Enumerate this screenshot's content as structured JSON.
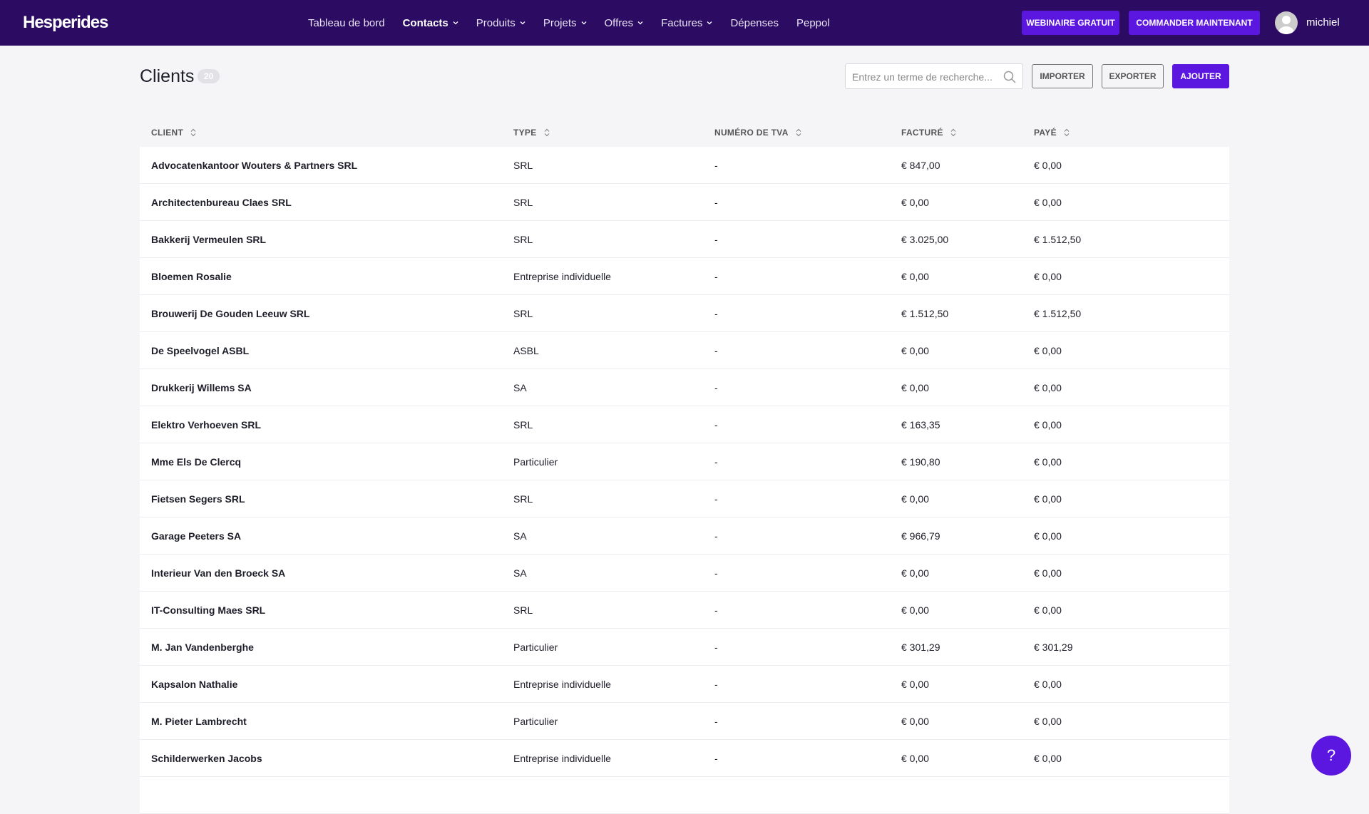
{
  "header": {
    "logo": "Hesperides",
    "nav": [
      {
        "label": "Tableau de bord",
        "dropdown": false,
        "active": false
      },
      {
        "label": "Contacts",
        "dropdown": true,
        "active": true
      },
      {
        "label": "Produits",
        "dropdown": true,
        "active": false
      },
      {
        "label": "Projets",
        "dropdown": true,
        "active": false
      },
      {
        "label": "Offres",
        "dropdown": true,
        "active": false
      },
      {
        "label": "Factures",
        "dropdown": true,
        "active": false
      },
      {
        "label": "Dépenses",
        "dropdown": false,
        "active": false
      },
      {
        "label": "Peppol",
        "dropdown": false,
        "active": false
      }
    ],
    "buttons": [
      "WEBINAIRE GRATUIT",
      "COMMANDER MAINTENANT"
    ],
    "user": "michiel"
  },
  "page": {
    "title": "Clients",
    "count": 20,
    "search_placeholder": "Entrez un terme de recherche...",
    "actions": [
      "IMPORTER",
      "EXPORTER",
      "AJOUTER"
    ]
  },
  "table": {
    "columns": [
      "CLIENT",
      "TYPE",
      "NUMÉRO DE TVA",
      "FACTURÉ",
      "PAYÉ"
    ],
    "rows": [
      [
        "Advocatenkantoor Wouters & Partners SRL",
        "SRL",
        "-",
        "€ 847,00",
        "€ 0,00"
      ],
      [
        "Architectenbureau Claes SRL",
        "SRL",
        "-",
        "€ 0,00",
        "€ 0,00"
      ],
      [
        "Bakkerij Vermeulen SRL",
        "SRL",
        "-",
        "€ 3.025,00",
        "€ 1.512,50"
      ],
      [
        "Bloemen Rosalie",
        "Entreprise individuelle",
        "-",
        "€ 0,00",
        "€ 0,00"
      ],
      [
        "Brouwerij De Gouden Leeuw SRL",
        "SRL",
        "-",
        "€ 1.512,50",
        "€ 1.512,50"
      ],
      [
        "De Speelvogel ASBL",
        "ASBL",
        "-",
        "€ 0,00",
        "€ 0,00"
      ],
      [
        "Drukkerij Willems SA",
        "SA",
        "-",
        "€ 0,00",
        "€ 0,00"
      ],
      [
        "Elektro Verhoeven SRL",
        "SRL",
        "-",
        "€ 163,35",
        "€ 0,00"
      ],
      [
        "Mme Els De Clercq",
        "Particulier",
        "-",
        "€ 190,80",
        "€ 0,00"
      ],
      [
        "Fietsen Segers SRL",
        "SRL",
        "-",
        "€ 0,00",
        "€ 0,00"
      ],
      [
        "Garage Peeters SA",
        "SA",
        "-",
        "€ 966,79",
        "€ 0,00"
      ],
      [
        "Interieur Van den Broeck SA",
        "SA",
        "-",
        "€ 0,00",
        "€ 0,00"
      ],
      [
        "IT-Consulting Maes SRL",
        "SRL",
        "-",
        "€ 0,00",
        "€ 0,00"
      ],
      [
        "M. Jan Vandenberghe",
        "Particulier",
        "-",
        "€ 301,29",
        "€ 301,29"
      ],
      [
        "Kapsalon Nathalie",
        "Entreprise individuelle",
        "-",
        "€ 0,00",
        "€ 0,00"
      ],
      [
        "M. Pieter Lambrecht",
        "Particulier",
        "-",
        "€ 0,00",
        "€ 0,00"
      ],
      [
        "Schilderwerken Jacobs",
        "Entreprise individuelle",
        "-",
        "€ 0,00",
        "€ 0,00"
      ]
    ]
  },
  "help": "?"
}
